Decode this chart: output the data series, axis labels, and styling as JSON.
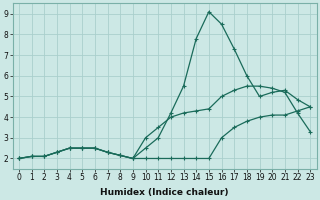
{
  "xlabel": "Humidex (Indice chaleur)",
  "background_color": "#cce8e5",
  "grid_color": "#aacfcc",
  "line_color": "#1a6b5a",
  "xlim": [
    -0.5,
    23.5
  ],
  "ylim": [
    1.5,
    9.5
  ],
  "xticks": [
    0,
    1,
    2,
    3,
    4,
    5,
    6,
    7,
    8,
    9,
    10,
    11,
    12,
    13,
    14,
    15,
    16,
    17,
    18,
    19,
    20,
    21,
    22,
    23
  ],
  "yticks": [
    2,
    3,
    4,
    5,
    6,
    7,
    8,
    9
  ],
  "line1_x": [
    0,
    1,
    2,
    3,
    4,
    5,
    6,
    7,
    8,
    9,
    10,
    11,
    12,
    13,
    14,
    15,
    16,
    17,
    18,
    19,
    20,
    21,
    22,
    23
  ],
  "line1_y": [
    2.0,
    2.1,
    2.1,
    2.3,
    2.5,
    2.5,
    2.5,
    2.3,
    2.15,
    2.0,
    2.0,
    2.0,
    2.0,
    2.0,
    2.0,
    2.0,
    3.0,
    3.5,
    3.8,
    4.0,
    4.1,
    4.1,
    4.3,
    4.5
  ],
  "line2_x": [
    0,
    1,
    2,
    3,
    4,
    5,
    6,
    7,
    8,
    9,
    10,
    11,
    12,
    13,
    14,
    15,
    16,
    17,
    18,
    19,
    20,
    21,
    22,
    23
  ],
  "line2_y": [
    2.0,
    2.1,
    2.1,
    2.3,
    2.5,
    2.5,
    2.5,
    2.3,
    2.15,
    2.0,
    2.5,
    3.0,
    4.2,
    5.5,
    7.8,
    9.1,
    8.5,
    7.3,
    6.0,
    5.0,
    5.2,
    5.3,
    4.85,
    4.5
  ],
  "line3_x": [
    0,
    1,
    2,
    3,
    4,
    5,
    6,
    7,
    8,
    9,
    10,
    11,
    12,
    13,
    14,
    15,
    16,
    17,
    18,
    19,
    20,
    21,
    22,
    23
  ],
  "line3_y": [
    2.0,
    2.1,
    2.1,
    2.3,
    2.5,
    2.5,
    2.5,
    2.3,
    2.15,
    2.0,
    3.0,
    3.5,
    4.0,
    4.2,
    4.3,
    4.4,
    5.0,
    5.3,
    5.5,
    5.5,
    5.4,
    5.2,
    4.2,
    3.3
  ]
}
